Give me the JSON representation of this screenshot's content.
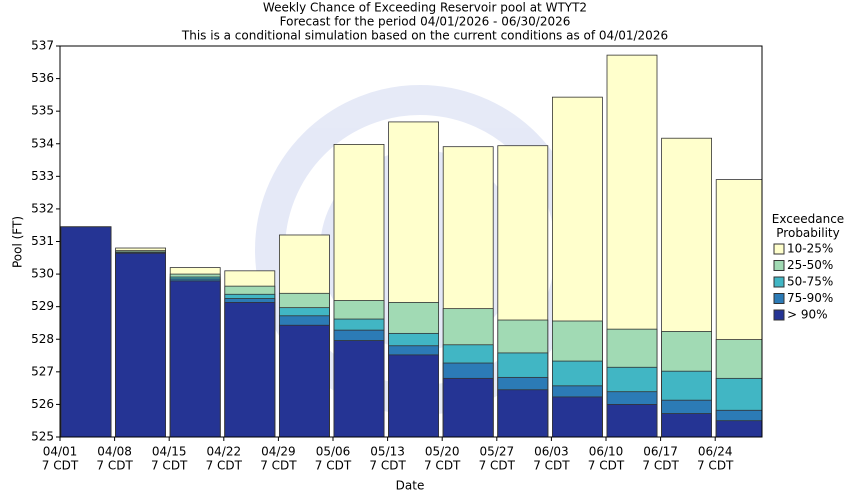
{
  "chart_data": {
    "type": "layered_bar",
    "title": "Weekly Chance of Exceeding Reservoir pool at WTYT2",
    "subtitle": "Forecast for the period 04/01/2026 - 06/30/2026",
    "note": "This is a conditional simulation based on the current conditions as of 04/01/2026",
    "x_label": "Date",
    "y_label": "Pool (FT)",
    "categories": [
      "04/01",
      "04/08",
      "04/15",
      "04/22",
      "04/29",
      "05/06",
      "05/13",
      "05/20",
      "05/27",
      "06/03",
      "06/10",
      "06/17",
      "06/24"
    ],
    "category_sublabel": "7 CDT",
    "legend_title": "Exceedance Probability",
    "series": [
      {
        "name": "10-25%",
        "color": "#ffffcc",
        "values": [
          531.45,
          530.8,
          530.2,
          530.1,
          531.2,
          533.98,
          534.67,
          533.91,
          533.94,
          535.43,
          536.72,
          534.17,
          532.9
        ]
      },
      {
        "name": "25-50%",
        "color": "#a1dab4",
        "values": [
          531.45,
          530.72,
          530.0,
          529.63,
          529.41,
          529.19,
          529.13,
          528.94,
          528.59,
          528.56,
          528.31,
          528.24,
          527.99
        ]
      },
      {
        "name": "50-75%",
        "color": "#41b6c4",
        "values": [
          531.45,
          530.68,
          529.91,
          529.38,
          528.97,
          528.62,
          528.18,
          527.83,
          527.58,
          527.33,
          527.14,
          527.02,
          526.8
        ]
      },
      {
        "name": "75-90%",
        "color": "#2c7bb6",
        "values": [
          531.45,
          530.66,
          529.85,
          529.25,
          528.72,
          528.28,
          527.8,
          527.27,
          526.83,
          526.57,
          526.39,
          526.13,
          525.82
        ]
      },
      {
        "name": "> 90%",
        "color": "#253494",
        "values": [
          531.45,
          530.64,
          529.79,
          529.13,
          528.43,
          527.96,
          527.52,
          526.8,
          526.45,
          526.23,
          526.0,
          525.72,
          525.5
        ]
      }
    ],
    "ylim": [
      525,
      537
    ],
    "yticks": [
      525,
      526,
      527,
      528,
      529,
      530,
      531,
      532,
      533,
      534,
      535,
      536,
      537
    ]
  }
}
